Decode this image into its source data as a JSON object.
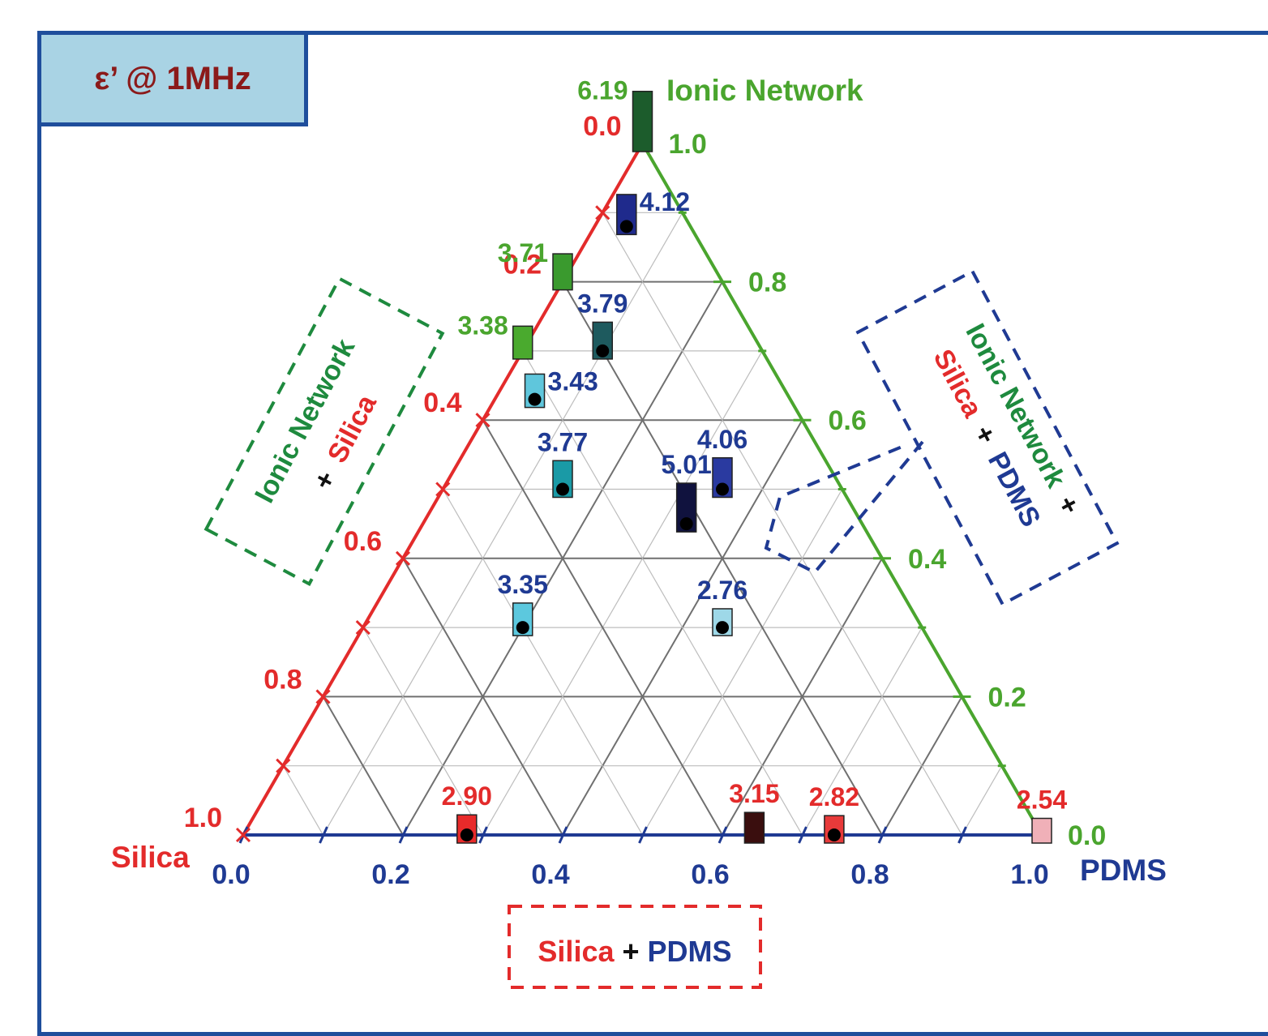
{
  "title": "ε’ @ 1MHz",
  "colors": {
    "silica": "#e32b2b",
    "pdms": "#1f3a93",
    "ionic": "#4aa52e",
    "ionic_dark": "#1e8a3e",
    "frame": "#1f4e9c"
  },
  "chart_data": {
    "type": "ternary-scatter",
    "title": "ε’ @ 1MHz",
    "axes": {
      "silica": {
        "label": "Silica",
        "ticks": [
          "0.0",
          "0.2",
          "0.4",
          "0.6",
          "0.8",
          "1.0"
        ]
      },
      "ionic": {
        "label": "Ionic Network",
        "ticks": [
          "0.0",
          "0.2",
          "0.4",
          "0.6",
          "0.8",
          "1.0"
        ]
      },
      "pdms": {
        "label": "PDMS",
        "ticks": [
          "0.0",
          "0.2",
          "0.4",
          "0.6",
          "0.8",
          "1.0"
        ]
      }
    },
    "grid": true,
    "points": [
      {
        "pdms": 0.0,
        "ionic": 1.0,
        "value": "6.19",
        "color": "#1c5c2c",
        "label_color": "green",
        "label_side": "left",
        "marker": false
      },
      {
        "pdms": 0.04,
        "ionic": 0.88,
        "value": "4.12",
        "color": "#1f2a8c",
        "label_color": "blue",
        "label_side": "right",
        "marker": true
      },
      {
        "pdms": 0.0,
        "ionic": 0.8,
        "value": "3.71",
        "color": "#3a9a2e",
        "label_color": "green",
        "label_side": "left",
        "marker": false
      },
      {
        "pdms": 0.0,
        "ionic": 0.7,
        "value": "3.38",
        "color": "#4aaa2e",
        "label_color": "green",
        "label_side": "left",
        "marker": false
      },
      {
        "pdms": 0.1,
        "ionic": 0.7,
        "value": "3.79",
        "color": "#1e5a5e",
        "label_color": "blue",
        "label_side": "above",
        "marker": true
      },
      {
        "pdms": 0.05,
        "ionic": 0.63,
        "value": "3.43",
        "color": "#5fc6dc",
        "label_color": "blue",
        "label_side": "right",
        "marker": true
      },
      {
        "pdms": 0.15,
        "ionic": 0.5,
        "value": "3.77",
        "color": "#1a9aa6",
        "label_color": "blue",
        "label_side": "above",
        "marker": true
      },
      {
        "pdms": 0.33,
        "ionic": 0.45,
        "value": "5.01",
        "color": "#10123e",
        "label_color": "blue",
        "label_side": "above",
        "marker": true
      },
      {
        "pdms": 0.35,
        "ionic": 0.5,
        "value": "4.06",
        "color": "#2a3aa0",
        "label_color": "blue",
        "label_side": "above",
        "marker": true
      },
      {
        "pdms": 0.2,
        "ionic": 0.3,
        "value": "3.35",
        "color": "#5cc8de",
        "label_color": "blue",
        "label_side": "above",
        "marker": true
      },
      {
        "pdms": 0.45,
        "ionic": 0.3,
        "value": "2.76",
        "color": "#9ed8e8",
        "label_color": "blue",
        "label_side": "above",
        "marker": true
      },
      {
        "pdms": 0.28,
        "ionic": 0.0,
        "value": "2.90",
        "color": "#e82a2a",
        "label_color": "red",
        "label_side": "above",
        "marker": true
      },
      {
        "pdms": 0.64,
        "ionic": 0.0,
        "value": "3.15",
        "color": "#3a0e0e",
        "label_color": "red",
        "label_side": "above",
        "marker": false
      },
      {
        "pdms": 0.74,
        "ionic": 0.0,
        "value": "2.82",
        "color": "#e83a3a",
        "label_color": "red",
        "label_side": "above",
        "marker": true
      },
      {
        "pdms": 1.0,
        "ionic": 0.0,
        "value": "2.54",
        "color": "#f0b0b8",
        "label_color": "red",
        "label_side": "above",
        "marker": false
      }
    ],
    "annotations": {
      "bottom": {
        "first": "Silica",
        "plus": "+",
        "second": "PDMS"
      },
      "left": {
        "first": "Ionic Network",
        "plus": "+",
        "second": "Silica"
      },
      "right": {
        "first": "Ionic Network",
        "plus1": "+",
        "second": "Silica",
        "plus2": "+",
        "third": "PDMS"
      }
    }
  }
}
